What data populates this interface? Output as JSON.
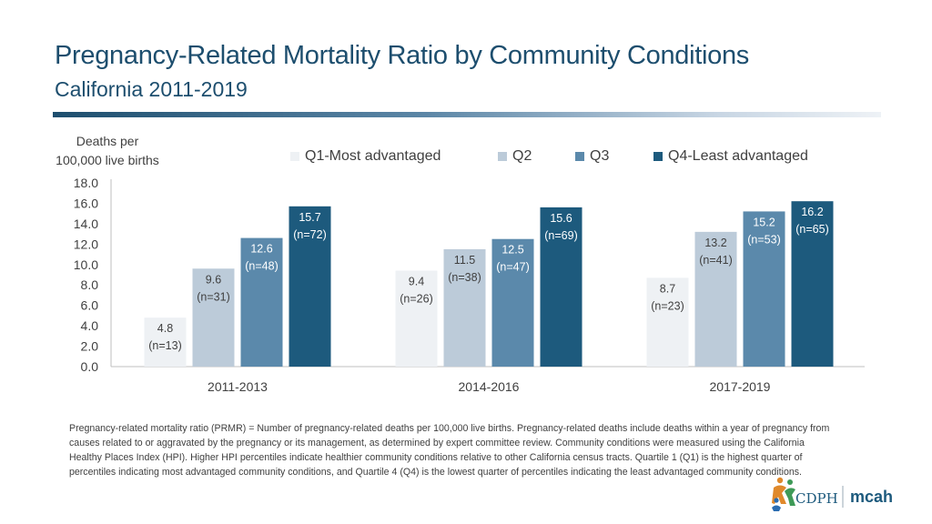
{
  "header": {
    "title": "Pregnancy-Related Mortality Ratio by Community Conditions",
    "subtitle": "California 2011-2019"
  },
  "chart_data": {
    "type": "bar",
    "ylabel_line1": "Deaths per",
    "ylabel_line2": "100,000 live births",
    "ylim": [
      0,
      18
    ],
    "yticks": [
      "0.0",
      "2.0",
      "4.0",
      "6.0",
      "8.0",
      "10.0",
      "12.0",
      "14.0",
      "16.0",
      "18.0"
    ],
    "categories": [
      "2011-2013",
      "2014-2016",
      "2017-2019"
    ],
    "series": [
      {
        "name": "Q1-Most advantaged",
        "color": "#eef1f4",
        "values": [
          4.8,
          9.4,
          8.7
        ],
        "labels": [
          "4.8",
          "9.4",
          "8.7"
        ],
        "counts": [
          "(n=13)",
          "(n=26)",
          "(n=23)"
        ]
      },
      {
        "name": "Q2",
        "color": "#bccbd9",
        "values": [
          9.6,
          11.5,
          13.2
        ],
        "labels": [
          "9.6",
          "11.5",
          "13.2"
        ],
        "counts": [
          "(n=31)",
          "(n=38)",
          "(n=41)"
        ]
      },
      {
        "name": "Q3",
        "color": "#5b89ab",
        "values": [
          12.6,
          12.5,
          15.2
        ],
        "labels": [
          "12.6",
          "12.5",
          "15.2"
        ],
        "counts": [
          "(n=48)",
          "(n=47)",
          "(n=53)"
        ]
      },
      {
        "name": "Q4-Least advantaged",
        "color": "#1d5a7d",
        "values": [
          15.7,
          15.6,
          16.2
        ],
        "labels": [
          "15.7",
          "15.6",
          "16.2"
        ],
        "counts": [
          "(n=72)",
          "(n=69)",
          "(n=65)"
        ]
      }
    ],
    "legend_position": "top"
  },
  "footnote": "Pregnancy-related mortality ratio (PRMR) = Number of pregnancy-related deaths per 100,000 live births. Pregnancy-related deaths include deaths within a year of pregnancy from causes related to or aggravated by the pregnancy or its management, as determined by expert committee review. Community conditions were measured using the California Healthy Places Index (HPI). Higher HPI percentiles indicate healthier community conditions relative to other California census tracts. Quartile 1 (Q1) is the highest quarter of percentiles indicating most advantaged community conditions, and Quartile 4 (Q4) is the lowest quarter of percentiles indicating the least advantaged community conditions.",
  "logo": {
    "cdph_text": "CDPH",
    "mcah_text": "mcah"
  }
}
